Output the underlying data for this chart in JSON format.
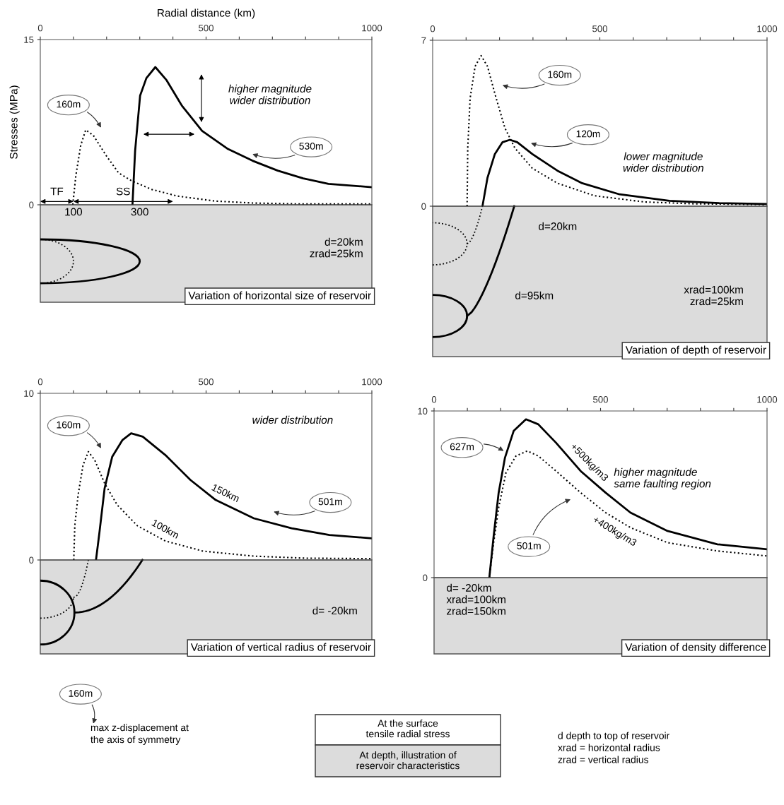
{
  "chart_data": [
    {
      "type": "line",
      "xlabel": "Radial distance (km)",
      "ylabel": "Stresses (MPa)",
      "xlim": [
        0,
        1000
      ],
      "ylim": [
        0,
        15
      ],
      "xticks": [
        0,
        {
          "value": 100,
          "label": null
        },
        {
          "value": 200,
          "label": null
        },
        {
          "value": 300,
          "label": null
        },
        {
          "value": 400,
          "label": null
        },
        500,
        {
          "value": 600,
          "label": null
        },
        {
          "value": 700,
          "label": null
        },
        {
          "value": 800,
          "label": null
        },
        {
          "value": 900,
          "label": null
        },
        1000
      ],
      "yticks": [
        0,
        15
      ],
      "series": [
        {
          "color": "#000000",
          "line_style": "dotted",
          "x": [
            98,
            107,
            122,
            137,
            160,
            198,
            236,
            274,
            335,
            412,
            526,
            640,
            793,
            1000
          ],
          "values": [
            0,
            2.6,
            5.4,
            6.8,
            6.3,
            4.5,
            2.9,
            2.2,
            1.4,
            0.8,
            0.34,
            0.16,
            0.07,
            0.07
          ]
        },
        {
          "color": "#000000",
          "line_style": "solid",
          "x": [
            278,
            286,
            301,
            320,
            347,
            381,
            427,
            488,
            564,
            640,
            716,
            793,
            869,
            1000
          ],
          "values": [
            0,
            4.9,
            9.9,
            11.5,
            12.5,
            11.3,
            9.0,
            6.7,
            5.1,
            4.0,
            3.1,
            2.4,
            1.9,
            1.6
          ]
        }
      ],
      "annotations": [
        "160m",
        "530m",
        "higher magnitude\nwider distribution",
        "TF",
        "SS",
        "100",
        "300",
        "d=20km\nzrad=25km",
        "Variation of horizontal size of reservoir"
      ]
    },
    {
      "type": "line",
      "xlim": [
        0,
        1000
      ],
      "ylim": [
        0,
        7
      ],
      "xticks": [
        0,
        {
          "value": 100,
          "label": null
        },
        {
          "value": 200,
          "label": null
        },
        {
          "value": 300,
          "label": null
        },
        {
          "value": 400,
          "label": null
        },
        500,
        {
          "value": 600,
          "label": null
        },
        {
          "value": 700,
          "label": null
        },
        {
          "value": 800,
          "label": null
        },
        {
          "value": 900,
          "label": null
        },
        1000
      ],
      "yticks": [
        0,
        7
      ],
      "series": [
        {
          "color": "#000000",
          "line_style": "dotted",
          "x": [
            103,
            105,
            112,
            127,
            145,
            164,
            186,
            216,
            246,
            298,
            373,
            484,
            633,
            782,
            1000
          ],
          "values": [
            0,
            2.45,
            4.55,
            5.9,
            6.35,
            5.9,
            4.75,
            3.3,
            2.45,
            1.6,
            0.97,
            0.44,
            0.18,
            0.1,
            0.07
          ]
        },
        {
          "color": "#000000",
          "line_style": "solid",
          "x": [
            149,
            164,
            186,
            209,
            231,
            253,
            298,
            373,
            447,
            559,
            708,
            857,
            1000
          ],
          "values": [
            0,
            1.2,
            2.2,
            2.7,
            2.8,
            2.7,
            2.2,
            1.5,
            0.97,
            0.5,
            0.23,
            0.13,
            0.09
          ]
        }
      ],
      "annotations": [
        "160m",
        "120m",
        "lower magnitude\nwider distribution",
        "d=20km",
        "d=95km",
        "xrad=100km\nzrad=25km",
        "Variation of depth of reservoir"
      ]
    },
    {
      "type": "line",
      "xlim": [
        0,
        1000
      ],
      "ylim": [
        0,
        10
      ],
      "xticks": [
        0,
        {
          "value": 100,
          "label": null
        },
        {
          "value": 200,
          "label": null
        },
        {
          "value": 300,
          "label": null
        },
        {
          "value": 400,
          "label": null
        },
        500,
        {
          "value": 600,
          "label": null
        },
        {
          "value": 700,
          "label": null
        },
        {
          "value": 800,
          "label": null
        },
        {
          "value": 900,
          "label": null
        },
        1000
      ],
      "yticks": [
        0,
        10
      ],
      "series": [
        {
          "name": "100km",
          "color": "#000000",
          "line_style": "dotted",
          "x": [
            101,
            104,
            114,
            129,
            145,
            164,
            194,
            232,
            293,
            377,
            491,
            644,
            796,
            1000
          ],
          "values": [
            0,
            2.05,
            3.9,
            5.7,
            6.5,
            6.0,
            4.6,
            3.3,
            2.05,
            1.14,
            0.53,
            0.23,
            0.11,
            0.08
          ]
        },
        {
          "name": "150km",
          "color": "#000000",
          "line_style": "solid",
          "x": [
            168,
            179,
            194,
            217,
            248,
            274,
            309,
            377,
            453,
            529,
            644,
            758,
            872,
            1000
          ],
          "values": [
            0,
            1.75,
            4.3,
            6.2,
            7.2,
            7.6,
            7.4,
            6.3,
            4.8,
            3.6,
            2.5,
            1.9,
            1.5,
            1.3
          ]
        }
      ],
      "annotations": [
        "160m",
        "501m",
        "wider distribution",
        "d= -20km",
        "Variation of vertical radius of reservoir"
      ]
    },
    {
      "type": "line",
      "xlim": [
        0,
        1000
      ],
      "ylim": [
        0,
        10
      ],
      "xticks": [
        0,
        {
          "value": 100,
          "label": null
        },
        {
          "value": 200,
          "label": null
        },
        {
          "value": 300,
          "label": null
        },
        {
          "value": 400,
          "label": null
        },
        500,
        {
          "value": 600,
          "label": null
        },
        {
          "value": 700,
          "label": null
        },
        {
          "value": 800,
          "label": null
        },
        {
          "value": 900,
          "label": null
        },
        1000
      ],
      "yticks": [
        0,
        10
      ],
      "series": [
        {
          "name": "+500kg/m3",
          "color": "#000000",
          "line_style": "solid",
          "x": [
            166,
            179,
            194,
            213,
            239,
            276,
            313,
            366,
            440,
            515,
            590,
            701,
            851,
            1000
          ],
          "values": [
            0,
            2.5,
            5.1,
            7.2,
            8.8,
            9.5,
            9.2,
            8.1,
            6.4,
            5.1,
            3.9,
            2.8,
            2.0,
            1.7
          ]
        },
        {
          "name": "+400kg/m3",
          "color": "#000000",
          "line_style": "dotted",
          "x": [
            166,
            179,
            194,
            216,
            246,
            280,
            313,
            366,
            440,
            515,
            590,
            701,
            851,
            1000
          ],
          "values": [
            0,
            2.1,
            4.2,
            6.3,
            7.3,
            7.6,
            7.3,
            6.4,
            5.1,
            3.9,
            3.0,
            2.1,
            1.6,
            1.3
          ]
        }
      ],
      "annotations": [
        "627m",
        "501m",
        "higher magnitude\nsame faulting region",
        "d= -20km\nxrad=100km\nzrad=150km",
        "Variation of density difference"
      ]
    },
    {
      "type": "other",
      "annotations": [
        "160m",
        "max z-displacement at\nthe axis of symmetry",
        "At the surface\ntensile radial stress",
        "At depth, illustration of\nreservoir characteristics",
        "d depth to top of reservoir\nxrad = horizontal radius\nzrad = vertical radius"
      ]
    }
  ]
}
